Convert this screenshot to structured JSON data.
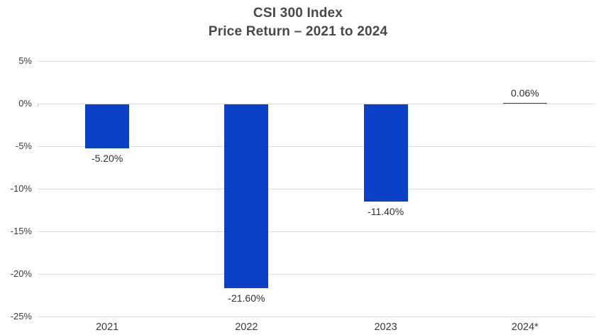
{
  "chart_data": {
    "type": "bar",
    "title": "CSI 300 Index",
    "subtitle": "Price Return – 2021 to 2024",
    "categories": [
      "2021",
      "2022",
      "2023",
      "2024*"
    ],
    "values": [
      -5.2,
      -21.6,
      -11.4,
      0.06
    ],
    "value_labels": [
      "-5.20%",
      "-21.60%",
      "-11.40%",
      "0.06%"
    ],
    "xlabel": "",
    "ylabel": "",
    "ylim": [
      -25,
      5
    ],
    "ytick_step": 5,
    "ytick_labels": [
      "5%",
      "0%",
      "-5%",
      "-10%",
      "-15%",
      "-20%",
      "-25%"
    ],
    "grid": "horizontal-only",
    "legend_position": "none",
    "colors": {
      "bar": "#0b41c9",
      "gridline": "#dcdcdc",
      "title_text": "#47484c",
      "axis_text": "#3a3a3d",
      "value_label_text": "#2f2f31",
      "background": "#ffffff"
    }
  }
}
